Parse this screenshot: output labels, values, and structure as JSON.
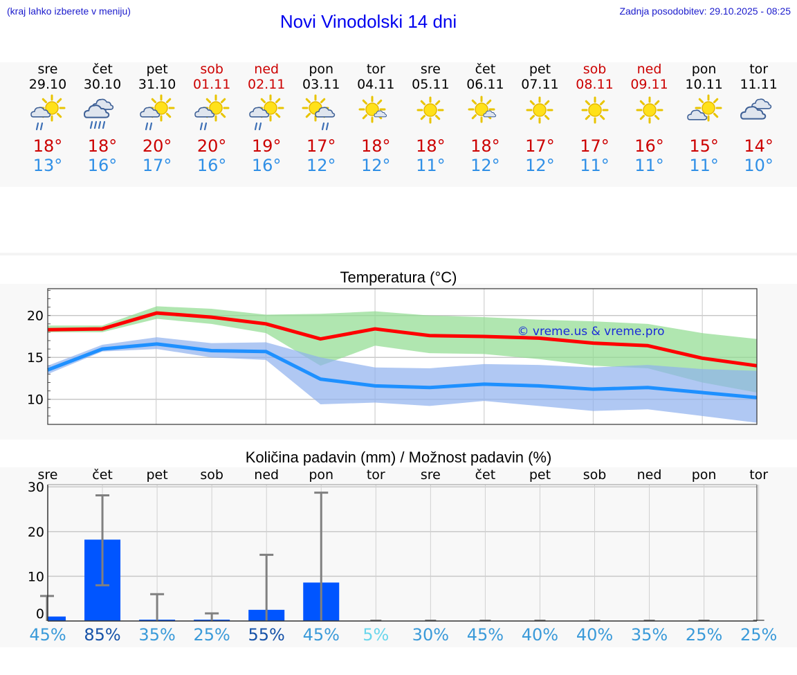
{
  "header": {
    "hint": "(kraj lahko izberete v meniju)",
    "title": "Novi Vinodolski 14 dni",
    "updated": "Zadnja posodobitev: 29.10.2025 - 08:25"
  },
  "days": [
    {
      "dow": "sre",
      "date": "29.10",
      "weekend": false,
      "icon": "partly-sunny-rain-icon",
      "tmax": "18°",
      "tmin": "13°"
    },
    {
      "dow": "čet",
      "date": "30.10",
      "weekend": false,
      "icon": "cloud-rain-icon",
      "tmax": "18°",
      "tmin": "16°"
    },
    {
      "dow": "pet",
      "date": "31.10",
      "weekend": false,
      "icon": "partly-sunny-rain-icon",
      "tmax": "20°",
      "tmin": "17°"
    },
    {
      "dow": "sob",
      "date": "01.11",
      "weekend": true,
      "icon": "partly-sunny-rain-icon",
      "tmax": "20°",
      "tmin": "16°"
    },
    {
      "dow": "ned",
      "date": "02.11",
      "weekend": true,
      "icon": "partly-sunny-rain-icon",
      "tmax": "19°",
      "tmin": "16°"
    },
    {
      "dow": "pon",
      "date": "03.11",
      "weekend": false,
      "icon": "sun-cloud-rain-icon",
      "tmax": "17°",
      "tmin": "12°"
    },
    {
      "dow": "tor",
      "date": "04.11",
      "weekend": false,
      "icon": "sun-small-cloud-icon",
      "tmax": "18°",
      "tmin": "12°"
    },
    {
      "dow": "sre",
      "date": "05.11",
      "weekend": false,
      "icon": "sun-icon",
      "tmax": "18°",
      "tmin": "11°"
    },
    {
      "dow": "čet",
      "date": "06.11",
      "weekend": false,
      "icon": "sun-small-cloud-icon",
      "tmax": "18°",
      "tmin": "12°"
    },
    {
      "dow": "pet",
      "date": "07.11",
      "weekend": false,
      "icon": "sun-icon",
      "tmax": "17°",
      "tmin": "12°"
    },
    {
      "dow": "sob",
      "date": "08.11",
      "weekend": true,
      "icon": "sun-icon",
      "tmax": "17°",
      "tmin": "11°"
    },
    {
      "dow": "ned",
      "date": "09.11",
      "weekend": true,
      "icon": "sun-icon",
      "tmax": "16°",
      "tmin": "11°"
    },
    {
      "dow": "pon",
      "date": "10.11",
      "weekend": false,
      "icon": "partly-sunny-icon",
      "tmax": "15°",
      "tmin": "11°"
    },
    {
      "dow": "tor",
      "date": "11.11",
      "weekend": false,
      "icon": "cloud-icon",
      "tmax": "14°",
      "tmin": "10°"
    }
  ],
  "chart_data": [
    {
      "type": "line",
      "title": "Temperatura (°C)",
      "watermark": "© vreme.us & vreme.pro",
      "ylim": [
        7,
        23.2
      ],
      "yticks": [
        10,
        15,
        20
      ],
      "x": [
        0,
        1,
        2,
        3,
        4,
        5,
        6,
        7,
        8,
        9,
        10,
        11,
        12,
        13
      ],
      "series": [
        {
          "name": "max",
          "color": "#ff0000",
          "values": [
            18.3,
            18.4,
            20.3,
            19.8,
            19.0,
            17.2,
            18.4,
            17.6,
            17.5,
            17.3,
            16.7,
            16.4,
            14.9,
            14.0
          ]
        },
        {
          "name": "min",
          "color": "#1e90ff",
          "values": [
            13.5,
            16.0,
            16.6,
            15.8,
            15.7,
            12.4,
            11.6,
            11.4,
            11.8,
            11.6,
            11.2,
            11.4,
            10.8,
            10.2
          ]
        }
      ],
      "bands": [
        {
          "name": "max-range",
          "color": "#8fdc8f",
          "low": [
            18.0,
            18.0,
            19.6,
            19.0,
            17.9,
            14.0,
            16.4,
            15.5,
            15.4,
            14.8,
            14.0,
            13.7,
            12.0,
            10.8
          ],
          "high": [
            18.8,
            18.8,
            21.1,
            20.8,
            20.1,
            20.2,
            20.5,
            20.0,
            19.8,
            19.5,
            19.3,
            19.0,
            17.9,
            17.2
          ]
        },
        {
          "name": "min-range",
          "color": "#8fb0ee",
          "low": [
            13.0,
            15.7,
            16.0,
            15.0,
            14.7,
            9.4,
            9.6,
            9.2,
            9.8,
            9.2,
            8.6,
            8.8,
            8.0,
            7.2
          ],
          "high": [
            14.0,
            16.5,
            17.4,
            16.7,
            16.8,
            15.0,
            13.8,
            13.7,
            14.2,
            14.1,
            13.8,
            14.1,
            13.6,
            13.4
          ]
        }
      ]
    },
    {
      "type": "bar",
      "title": "Količina padavin (mm) / Možnost padavin (%)",
      "categories": [
        "sre",
        "čet",
        "pet",
        "sob",
        "ned",
        "pon",
        "tor",
        "sre",
        "čet",
        "pet",
        "sob",
        "ned",
        "pon",
        "tor"
      ],
      "ylim": [
        0,
        30.5
      ],
      "yticks": [
        0,
        10,
        20,
        30
      ],
      "values": [
        1.0,
        18.2,
        0.3,
        0.3,
        2.5,
        8.6,
        0,
        0,
        0,
        0,
        0,
        0,
        0,
        0
      ],
      "error_low": [
        0,
        8.0,
        0,
        0,
        0,
        0,
        0,
        0,
        0,
        0,
        0,
        0,
        0,
        0
      ],
      "error_high": [
        5.6,
        28.1,
        6.0,
        1.7,
        14.8,
        28.7,
        0,
        0,
        0,
        0,
        0,
        0,
        0,
        0
      ],
      "probability": [
        "45%",
        "85%",
        "35%",
        "25%",
        "55%",
        "45%",
        "5%",
        "30%",
        "45%",
        "40%",
        "40%",
        "35%",
        "25%",
        "25%"
      ],
      "probability_colors": [
        "#3a9ad9",
        "#1652a8",
        "#3a9ad9",
        "#3a9ad9",
        "#1652a8",
        "#3a9ad9",
        "#6ad6ec",
        "#3a9ad9",
        "#3a9ad9",
        "#3a9ad9",
        "#3a9ad9",
        "#3a9ad9",
        "#3a9ad9",
        "#3a9ad9"
      ]
    }
  ]
}
